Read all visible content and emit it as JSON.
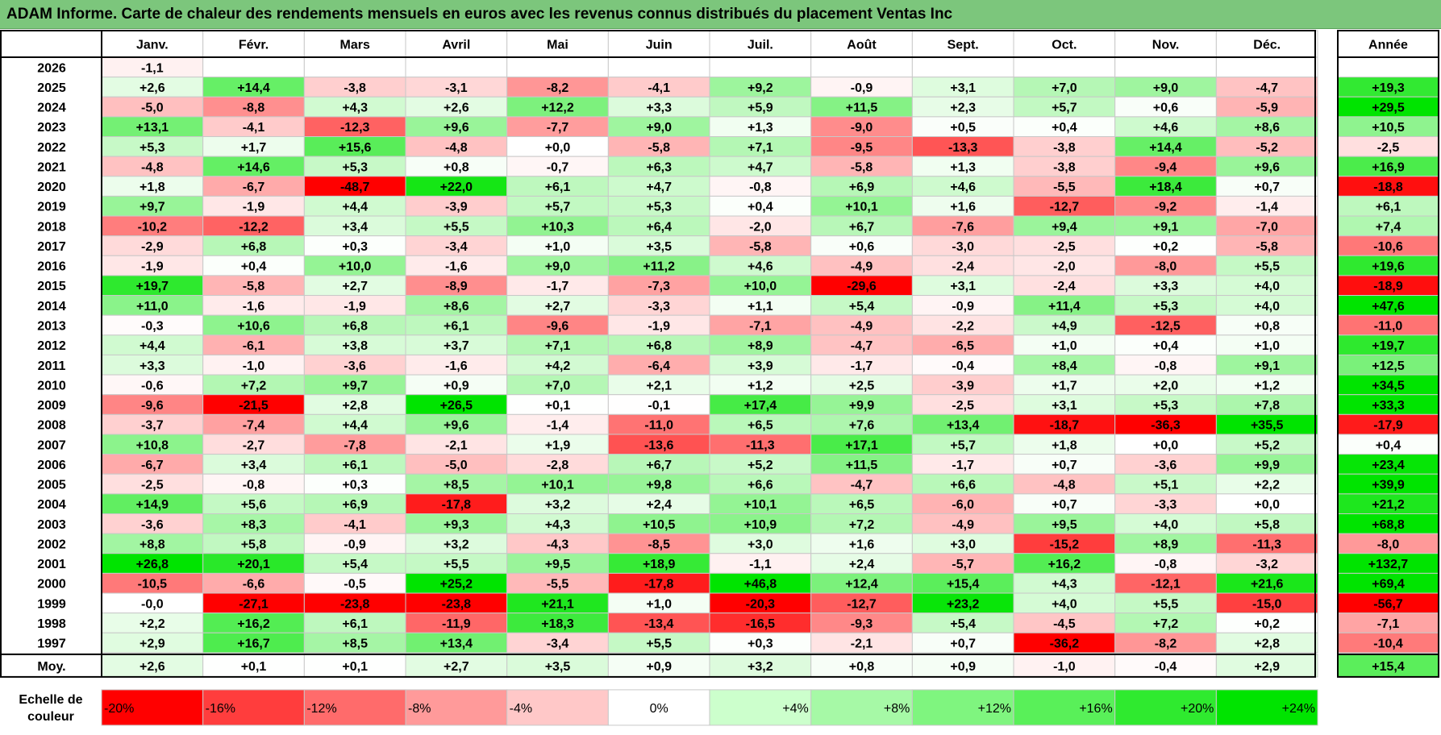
{
  "title": "ADAM Informe. Carte de chaleur des rendements mensuels en euros avec les revenus connus distribués du placement Ventas Inc",
  "chart_data": {
    "type": "heatmap",
    "columns": [
      "Janv.",
      "Févr.",
      "Mars",
      "Avril",
      "Mai",
      "Juin",
      "Juil.",
      "Août",
      "Sept.",
      "Oct.",
      "Nov.",
      "Déc."
    ],
    "year_column_header": "Année",
    "rows": [
      {
        "year": "2026",
        "months": [
          "-1,1",
          "",
          "",
          "",
          "",
          "",
          "",
          "",
          "",
          "",
          "",
          ""
        ],
        "annual": ""
      },
      {
        "year": "2025",
        "months": [
          "+2,6",
          "+14,4",
          "-3,8",
          "-3,1",
          "-8,2",
          "-4,1",
          "+9,2",
          "-0,9",
          "+3,1",
          "+7,0",
          "+9,0",
          "-4,7"
        ],
        "annual": "+19,3"
      },
      {
        "year": "2024",
        "months": [
          "-5,0",
          "-8,8",
          "+4,3",
          "+2,6",
          "+12,2",
          "+3,3",
          "+5,9",
          "+11,5",
          "+2,3",
          "+5,7",
          "+0,6",
          "-5,9"
        ],
        "annual": "+29,5"
      },
      {
        "year": "2023",
        "months": [
          "+13,1",
          "-4,1",
          "-12,3",
          "+9,6",
          "-7,7",
          "+9,0",
          "+1,3",
          "-9,0",
          "+0,5",
          "+0,4",
          "+4,6",
          "+8,6"
        ],
        "annual": "+10,5"
      },
      {
        "year": "2022",
        "months": [
          "+5,3",
          "+1,7",
          "+15,6",
          "-4,8",
          "+0,0",
          "-5,8",
          "+7,1",
          "-9,5",
          "-13,3",
          "-3,8",
          "+14,4",
          "-5,2"
        ],
        "annual": "-2,5"
      },
      {
        "year": "2021",
        "months": [
          "-4,8",
          "+14,6",
          "+5,3",
          "+0,8",
          "-0,7",
          "+6,3",
          "+4,7",
          "-5,8",
          "+1,3",
          "-3,8",
          "-9,4",
          "+9,6"
        ],
        "annual": "+16,9"
      },
      {
        "year": "2020",
        "months": [
          "+1,8",
          "-6,7",
          "-48,7",
          "+22,0",
          "+6,1",
          "+4,7",
          "-0,8",
          "+6,9",
          "+4,6",
          "-5,5",
          "+18,4",
          "+0,7"
        ],
        "annual": "-18,8"
      },
      {
        "year": "2019",
        "months": [
          "+9,7",
          "-1,9",
          "+4,4",
          "-3,9",
          "+5,7",
          "+5,3",
          "+0,4",
          "+10,1",
          "+1,6",
          "-12,7",
          "-9,2",
          "-1,4"
        ],
        "annual": "+6,1"
      },
      {
        "year": "2018",
        "months": [
          "-10,2",
          "-12,2",
          "+3,4",
          "+5,5",
          "+10,3",
          "+6,4",
          "-2,0",
          "+6,7",
          "-7,6",
          "+9,4",
          "+9,1",
          "-7,0"
        ],
        "annual": "+7,4"
      },
      {
        "year": "2017",
        "months": [
          "-2,9",
          "+6,8",
          "+0,3",
          "-3,4",
          "+1,0",
          "+3,5",
          "-5,8",
          "+0,6",
          "-3,0",
          "-2,5",
          "+0,2",
          "-5,8"
        ],
        "annual": "-10,6"
      },
      {
        "year": "2016",
        "months": [
          "-1,9",
          "+0,4",
          "+10,0",
          "-1,6",
          "+9,0",
          "+11,2",
          "+4,6",
          "-4,9",
          "-2,4",
          "-2,0",
          "-8,0",
          "+5,5"
        ],
        "annual": "+19,6"
      },
      {
        "year": "2015",
        "months": [
          "+19,7",
          "-5,8",
          "+2,7",
          "-8,9",
          "-1,7",
          "-7,3",
          "+10,0",
          "-29,6",
          "+3,1",
          "-2,4",
          "+3,3",
          "+4,0"
        ],
        "annual": "-18,9"
      },
      {
        "year": "2014",
        "months": [
          "+11,0",
          "-1,6",
          "-1,9",
          "+8,6",
          "+2,7",
          "-3,3",
          "+1,1",
          "+5,4",
          "-0,9",
          "+11,4",
          "+5,3",
          "+4,0"
        ],
        "annual": "+47,6"
      },
      {
        "year": "2013",
        "months": [
          "-0,3",
          "+10,6",
          "+6,8",
          "+6,1",
          "-9,6",
          "-1,9",
          "-7,1",
          "-4,9",
          "-2,2",
          "+4,9",
          "-12,5",
          "+0,8"
        ],
        "annual": "-11,0"
      },
      {
        "year": "2012",
        "months": [
          "+4,4",
          "-6,1",
          "+3,8",
          "+3,7",
          "+7,1",
          "+6,8",
          "+8,9",
          "-4,7",
          "-6,5",
          "+1,0",
          "+0,4",
          "+1,0"
        ],
        "annual": "+19,7"
      },
      {
        "year": "2011",
        "months": [
          "+3,3",
          "-1,0",
          "-3,6",
          "-1,6",
          "+4,2",
          "-6,4",
          "+3,9",
          "-1,7",
          "-0,4",
          "+8,4",
          "-0,8",
          "+9,1"
        ],
        "annual": "+12,5"
      },
      {
        "year": "2010",
        "months": [
          "-0,6",
          "+7,2",
          "+9,7",
          "+0,9",
          "+7,0",
          "+2,1",
          "+1,2",
          "+2,5",
          "-3,9",
          "+1,7",
          "+2,0",
          "+1,2"
        ],
        "annual": "+34,5"
      },
      {
        "year": "2009",
        "months": [
          "-9,6",
          "-21,5",
          "+2,8",
          "+26,5",
          "+0,1",
          "-0,1",
          "+17,4",
          "+9,9",
          "-2,5",
          "+3,1",
          "+5,3",
          "+7,8"
        ],
        "annual": "+33,3"
      },
      {
        "year": "2008",
        "months": [
          "-3,7",
          "-7,4",
          "+4,4",
          "+9,6",
          "-1,4",
          "-11,0",
          "+6,5",
          "+7,6",
          "+13,4",
          "-18,7",
          "-36,3",
          "+35,5"
        ],
        "annual": "-17,9"
      },
      {
        "year": "2007",
        "months": [
          "+10,8",
          "-2,7",
          "-7,8",
          "-2,1",
          "+1,9",
          "-13,6",
          "-11,3",
          "+17,1",
          "+5,7",
          "+1,8",
          "+0,0",
          "+5,2"
        ],
        "annual": "+0,4"
      },
      {
        "year": "2006",
        "months": [
          "-6,7",
          "+3,4",
          "+6,1",
          "-5,0",
          "-2,8",
          "+6,7",
          "+5,2",
          "+11,5",
          "-1,7",
          "+0,7",
          "-3,6",
          "+9,9"
        ],
        "annual": "+23,4"
      },
      {
        "year": "2005",
        "months": [
          "-2,5",
          "-0,8",
          "+0,3",
          "+8,5",
          "+10,1",
          "+9,8",
          "+6,6",
          "-4,7",
          "+6,6",
          "-4,8",
          "+5,1",
          "+2,2"
        ],
        "annual": "+39,9"
      },
      {
        "year": "2004",
        "months": [
          "+14,9",
          "+5,6",
          "+6,9",
          "-17,8",
          "+3,2",
          "+2,4",
          "+10,1",
          "+6,5",
          "-6,0",
          "+0,7",
          "-3,3",
          "+0,0"
        ],
        "annual": "+21,2"
      },
      {
        "year": "2003",
        "months": [
          "-3,6",
          "+8,3",
          "-4,1",
          "+9,3",
          "+4,3",
          "+10,5",
          "+10,9",
          "+7,2",
          "-4,9",
          "+9,5",
          "+4,0",
          "+5,8"
        ],
        "annual": "+68,8"
      },
      {
        "year": "2002",
        "months": [
          "+8,8",
          "+5,8",
          "-0,9",
          "+3,2",
          "-4,3",
          "-8,5",
          "+3,0",
          "+1,6",
          "+3,0",
          "-15,2",
          "+8,9",
          "-11,3"
        ],
        "annual": "-8,0"
      },
      {
        "year": "2001",
        "months": [
          "+26,8",
          "+20,1",
          "+5,4",
          "+5,5",
          "+9,5",
          "+18,9",
          "-1,1",
          "+2,4",
          "-5,7",
          "+16,2",
          "-0,8",
          "-3,2"
        ],
        "annual": "+132,7"
      },
      {
        "year": "2000",
        "months": [
          "-10,5",
          "-6,6",
          "-0,5",
          "+25,2",
          "-5,5",
          "-17,8",
          "+46,8",
          "+12,4",
          "+15,4",
          "+4,3",
          "-12,1",
          "+21,6"
        ],
        "annual": "+69,4"
      },
      {
        "year": "1999",
        "months": [
          "-0,0",
          "-27,1",
          "-23,8",
          "-23,8",
          "+21,1",
          "+1,0",
          "-20,3",
          "-12,7",
          "+23,2",
          "+4,0",
          "+5,5",
          "-15,0"
        ],
        "annual": "-56,7"
      },
      {
        "year": "1998",
        "months": [
          "+2,2",
          "+16,2",
          "+6,1",
          "-11,9",
          "+18,3",
          "-13,4",
          "-16,5",
          "-9,3",
          "+5,4",
          "-4,5",
          "+7,2",
          "+0,2"
        ],
        "annual": "-7,1"
      },
      {
        "year": "1997",
        "months": [
          "+2,9",
          "+16,7",
          "+8,5",
          "+13,4",
          "-3,4",
          "+5,5",
          "+0,3",
          "-2,1",
          "+0,7",
          "-36,2",
          "-8,2",
          "+2,8"
        ],
        "annual": "-10,4"
      }
    ],
    "average_row": {
      "label": "Moy.",
      "months": [
        "+2,6",
        "+0,1",
        "+0,1",
        "+2,7",
        "+3,5",
        "+0,9",
        "+3,2",
        "+0,8",
        "+0,9",
        "-1,0",
        "-0,4",
        "+2,9"
      ],
      "annual": "+15,4"
    },
    "color_scale": {
      "label": "Echelle de couleur",
      "steps": [
        {
          "label": "-20%",
          "color": "#ff0000"
        },
        {
          "label": "-16%",
          "color": "#ff3d3d"
        },
        {
          "label": "-12%",
          "color": "#ff6b6b"
        },
        {
          "label": "-8%",
          "color": "#ff9a9a"
        },
        {
          "label": "-4%",
          "color": "#ffc8c8"
        },
        {
          "label": "0%",
          "color": "#ffffff"
        },
        {
          "label": "+4%",
          "color": "#ccffcc"
        },
        {
          "label": "+8%",
          "color": "#a6f9a6"
        },
        {
          "label": "+12%",
          "color": "#7ff57f"
        },
        {
          "label": "+16%",
          "color": "#59f059"
        },
        {
          "label": "+20%",
          "color": "#2fea2f"
        },
        {
          "label": "+24%",
          "color": "#00e400"
        }
      ]
    }
  }
}
